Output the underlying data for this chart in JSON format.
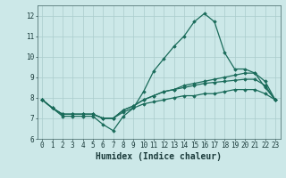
{
  "title": "",
  "xlabel": "Humidex (Indice chaleur)",
  "background_color": "#cce8e8",
  "grid_color": "#aacccc",
  "line_color": "#1a6b5a",
  "x_values": [
    0,
    1,
    2,
    3,
    4,
    5,
    6,
    7,
    8,
    9,
    10,
    11,
    12,
    13,
    14,
    15,
    16,
    17,
    18,
    19,
    20,
    21,
    22,
    23
  ],
  "line1": [
    7.9,
    7.5,
    7.1,
    7.1,
    7.1,
    7.1,
    6.7,
    6.4,
    7.1,
    7.5,
    8.3,
    9.3,
    9.9,
    10.5,
    11.0,
    11.7,
    12.1,
    11.7,
    10.2,
    9.4,
    9.4,
    9.2,
    8.5,
    7.9
  ],
  "line2": [
    7.9,
    7.5,
    7.2,
    7.2,
    7.2,
    7.2,
    7.0,
    7.0,
    7.4,
    7.6,
    7.9,
    8.1,
    8.3,
    8.4,
    8.6,
    8.7,
    8.8,
    8.9,
    9.0,
    9.1,
    9.2,
    9.2,
    8.8,
    7.9
  ],
  "line3": [
    7.9,
    7.5,
    7.2,
    7.2,
    7.2,
    7.2,
    7.0,
    7.0,
    7.4,
    7.6,
    7.9,
    8.1,
    8.3,
    8.4,
    8.5,
    8.6,
    8.7,
    8.75,
    8.8,
    8.85,
    8.9,
    8.9,
    8.6,
    7.9
  ],
  "line4": [
    7.9,
    7.5,
    7.2,
    7.2,
    7.2,
    7.2,
    7.0,
    7.0,
    7.3,
    7.5,
    7.7,
    7.8,
    7.9,
    8.0,
    8.1,
    8.1,
    8.2,
    8.2,
    8.3,
    8.4,
    8.4,
    8.4,
    8.2,
    7.9
  ],
  "ylim": [
    6.0,
    12.5
  ],
  "xlim": [
    -0.5,
    23.5
  ],
  "yticks": [
    6,
    7,
    8,
    9,
    10,
    11,
    12
  ],
  "xticks": [
    0,
    1,
    2,
    3,
    4,
    5,
    6,
    7,
    8,
    9,
    10,
    11,
    12,
    13,
    14,
    15,
    16,
    17,
    18,
    19,
    20,
    21,
    22,
    23
  ],
  "marker": "D",
  "markersize": 1.8,
  "linewidth": 0.9,
  "xlabel_fontsize": 7,
  "tick_fontsize": 5.5,
  "xlabel_fontweight": "bold"
}
